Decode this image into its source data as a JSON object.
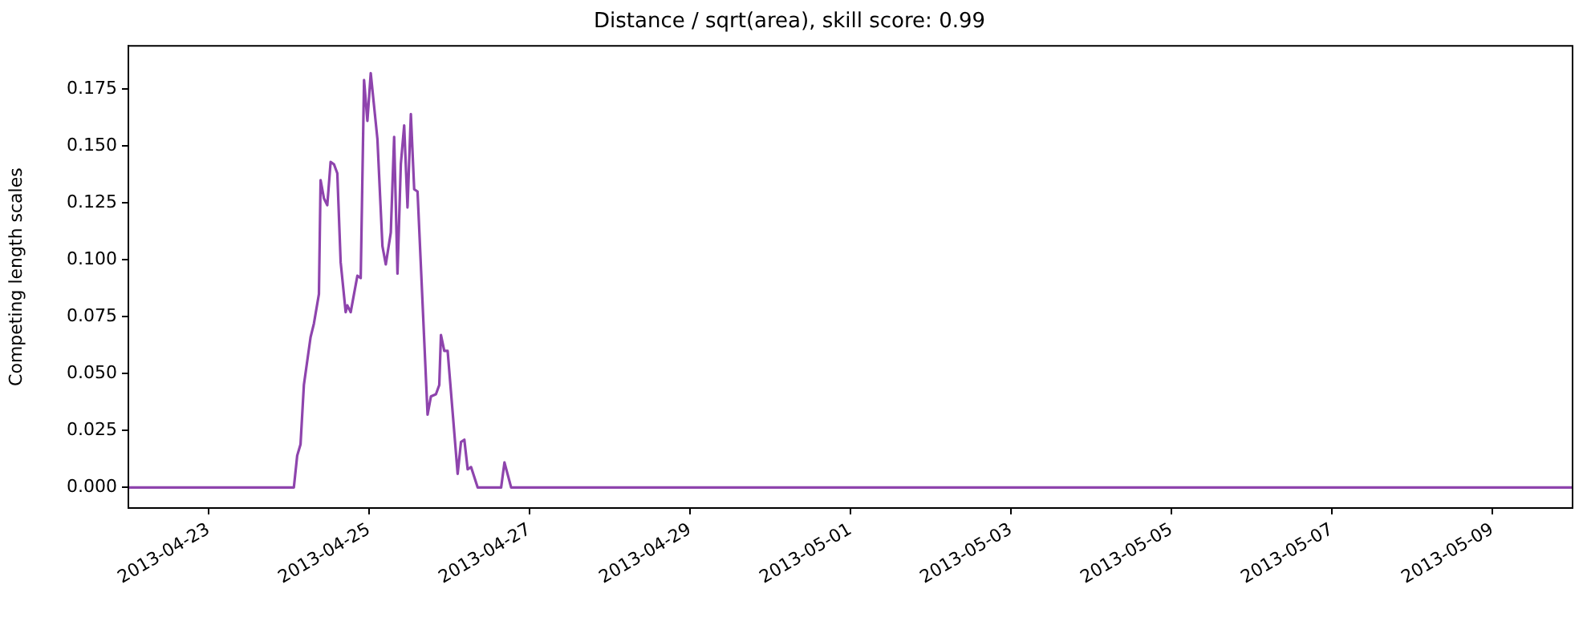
{
  "chart_data": {
    "type": "line",
    "title": "Distance / sqrt(area), skill score: 0.99",
    "ylabel": "Competing length scales",
    "x": [
      "2013-04-22T00:00",
      "2013-04-24T01:30",
      "2013-04-24T02:30",
      "2013-04-24T03:30",
      "2013-04-24T04:30",
      "2013-04-24T06:30",
      "2013-04-24T07:30",
      "2013-04-24T09:00",
      "2013-04-24T09:30",
      "2013-04-24T10:30",
      "2013-04-24T11:30",
      "2013-04-24T12:30",
      "2013-04-24T13:30",
      "2013-04-24T14:30",
      "2013-04-24T15:30",
      "2013-04-24T17:00",
      "2013-04-24T17:30",
      "2013-04-24T18:30",
      "2013-04-24T20:30",
      "2013-04-24T21:30",
      "2013-04-24T22:30",
      "2013-04-24T23:30",
      "2013-04-25T00:30",
      "2013-04-25T02:30",
      "2013-04-25T04:00",
      "2013-04-25T05:00",
      "2013-04-25T06:30",
      "2013-04-25T07:30",
      "2013-04-25T08:30",
      "2013-04-25T09:30",
      "2013-04-25T10:30",
      "2013-04-25T11:30",
      "2013-04-25T12:30",
      "2013-04-25T13:30",
      "2013-04-25T14:30",
      "2013-04-25T17:30",
      "2013-04-25T18:30",
      "2013-04-25T20:00",
      "2013-04-25T21:00",
      "2013-04-25T21:30",
      "2013-04-25T22:30",
      "2013-04-25T23:30",
      "2013-04-26T02:30",
      "2013-04-26T03:30",
      "2013-04-26T04:30",
      "2013-04-26T05:30",
      "2013-04-26T06:30",
      "2013-04-26T08:30",
      "2013-04-26T15:30",
      "2013-04-26T16:30",
      "2013-04-26T18:30",
      "2013-05-10T00:00"
    ],
    "series": [
      {
        "color": "#8e44ad",
        "values": [
          0,
          0,
          0.014,
          0.019,
          0.045,
          0.066,
          0.072,
          0.085,
          0.135,
          0.127,
          0.124,
          0.143,
          0.142,
          0.138,
          0.099,
          0.077,
          0.08,
          0.077,
          0.093,
          0.092,
          0.179,
          0.161,
          0.182,
          0.153,
          0.106,
          0.098,
          0.112,
          0.154,
          0.094,
          0.142,
          0.159,
          0.123,
          0.164,
          0.131,
          0.13,
          0.032,
          0.04,
          0.041,
          0.045,
          0.067,
          0.06,
          0.06,
          0.006,
          0.02,
          0.021,
          0.008,
          0.009,
          0,
          0,
          0.011,
          0,
          0
        ]
      }
    ],
    "xlim": [
      "2013-04-22",
      "2013-05-10"
    ],
    "xticks": [
      "2013-04-23",
      "2013-04-25",
      "2013-04-27",
      "2013-04-29",
      "2013-05-01",
      "2013-05-03",
      "2013-05-05",
      "2013-05-07",
      "2013-05-09"
    ],
    "ylim": [
      -0.009,
      0.194
    ],
    "yticks": [
      {
        "value": 0,
        "label": "0.000"
      },
      {
        "value": 0.025,
        "label": "0.025"
      },
      {
        "value": 0.05,
        "label": "0.050"
      },
      {
        "value": 0.075,
        "label": "0.075"
      },
      {
        "value": 0.1,
        "label": "0.100"
      },
      {
        "value": 0.125,
        "label": "0.125"
      },
      {
        "value": 0.15,
        "label": "0.150"
      },
      {
        "value": 0.175,
        "label": "0.175"
      }
    ],
    "grid": false,
    "legend": false,
    "marker": "none",
    "line_style": "solid"
  }
}
